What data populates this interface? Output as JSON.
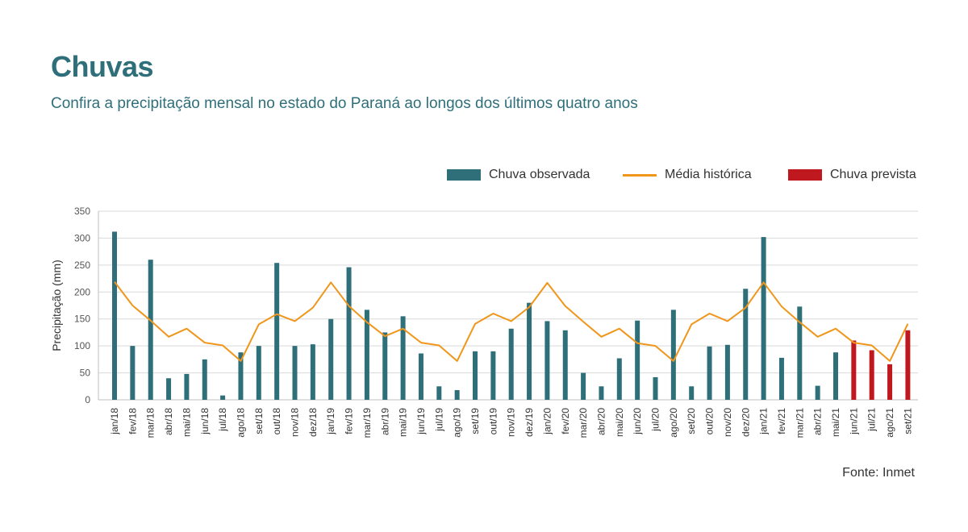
{
  "header": {
    "title": "Chuvas",
    "subtitle": "Confira a precipitação mensal no estado do Paraná ao longos dos últimos quatro anos"
  },
  "legend": {
    "observed": "Chuva observada",
    "average": "Média histórica",
    "forecast": "Chuva prevista"
  },
  "source": "Fonte: Inmet",
  "colors": {
    "observed": "#2e6f7a",
    "average": "#f0961a",
    "forecast": "#c0181f",
    "grid": "#d9d9d9"
  },
  "chart_data": {
    "type": "bar",
    "title": "Chuvas",
    "xlabel": "",
    "ylabel": "Precipitação (mm)",
    "ylim": [
      0,
      350
    ],
    "yticks": [
      0,
      50,
      100,
      150,
      200,
      250,
      300,
      350
    ],
    "grid": true,
    "legend_position": "top-right",
    "categories": [
      "jan/18",
      "fev/18",
      "mar/18",
      "abr/18",
      "mai/18",
      "jun/18",
      "jul/18",
      "ago/18",
      "set/18",
      "out/18",
      "nov/18",
      "dez/18",
      "jan/19",
      "fev/19",
      "mar/19",
      "abr/19",
      "mai/19",
      "jun/19",
      "jul/19",
      "ago/19",
      "set/19",
      "out/19",
      "nov/19",
      "dez/19",
      "jan/20",
      "fev/20",
      "mar/20",
      "abr/20",
      "mai/20",
      "jun/20",
      "jul/20",
      "ago/20",
      "set/20",
      "out/20",
      "nov/20",
      "dez/20",
      "jan/21",
      "fev/21",
      "mar/21",
      "abr/21",
      "mai/21",
      "jun/21",
      "jul/21",
      "ago/21",
      "set/21"
    ],
    "series": [
      {
        "name": "Chuva observada",
        "kind": "bar",
        "values": [
          312,
          100,
          260,
          40,
          48,
          75,
          8,
          88,
          100,
          254,
          100,
          103,
          150,
          246,
          167,
          125,
          155,
          86,
          25,
          18,
          90,
          90,
          132,
          180,
          146,
          129,
          50,
          25,
          77,
          147,
          42,
          167,
          25,
          99,
          102,
          206,
          302,
          78,
          173,
          26,
          88,
          null,
          null,
          null,
          null
        ]
      },
      {
        "name": "Chuva prevista",
        "kind": "bar",
        "values": [
          null,
          null,
          null,
          null,
          null,
          null,
          null,
          null,
          null,
          null,
          null,
          null,
          null,
          null,
          null,
          null,
          null,
          null,
          null,
          null,
          null,
          null,
          null,
          null,
          null,
          null,
          null,
          null,
          null,
          null,
          null,
          null,
          null,
          null,
          null,
          null,
          null,
          null,
          null,
          null,
          null,
          110,
          92,
          66,
          129
        ]
      },
      {
        "name": "Média histórica",
        "kind": "line",
        "values": [
          219,
          175,
          147,
          117,
          132,
          106,
          101,
          72,
          140,
          159,
          146,
          171,
          218,
          174,
          144,
          118,
          132,
          106,
          101,
          72,
          141,
          160,
          146,
          172,
          217,
          174,
          145,
          117,
          132,
          105,
          100,
          72,
          140,
          160,
          146,
          171,
          218,
          173,
          144,
          117,
          132,
          106,
          101,
          72,
          141
        ]
      }
    ]
  }
}
